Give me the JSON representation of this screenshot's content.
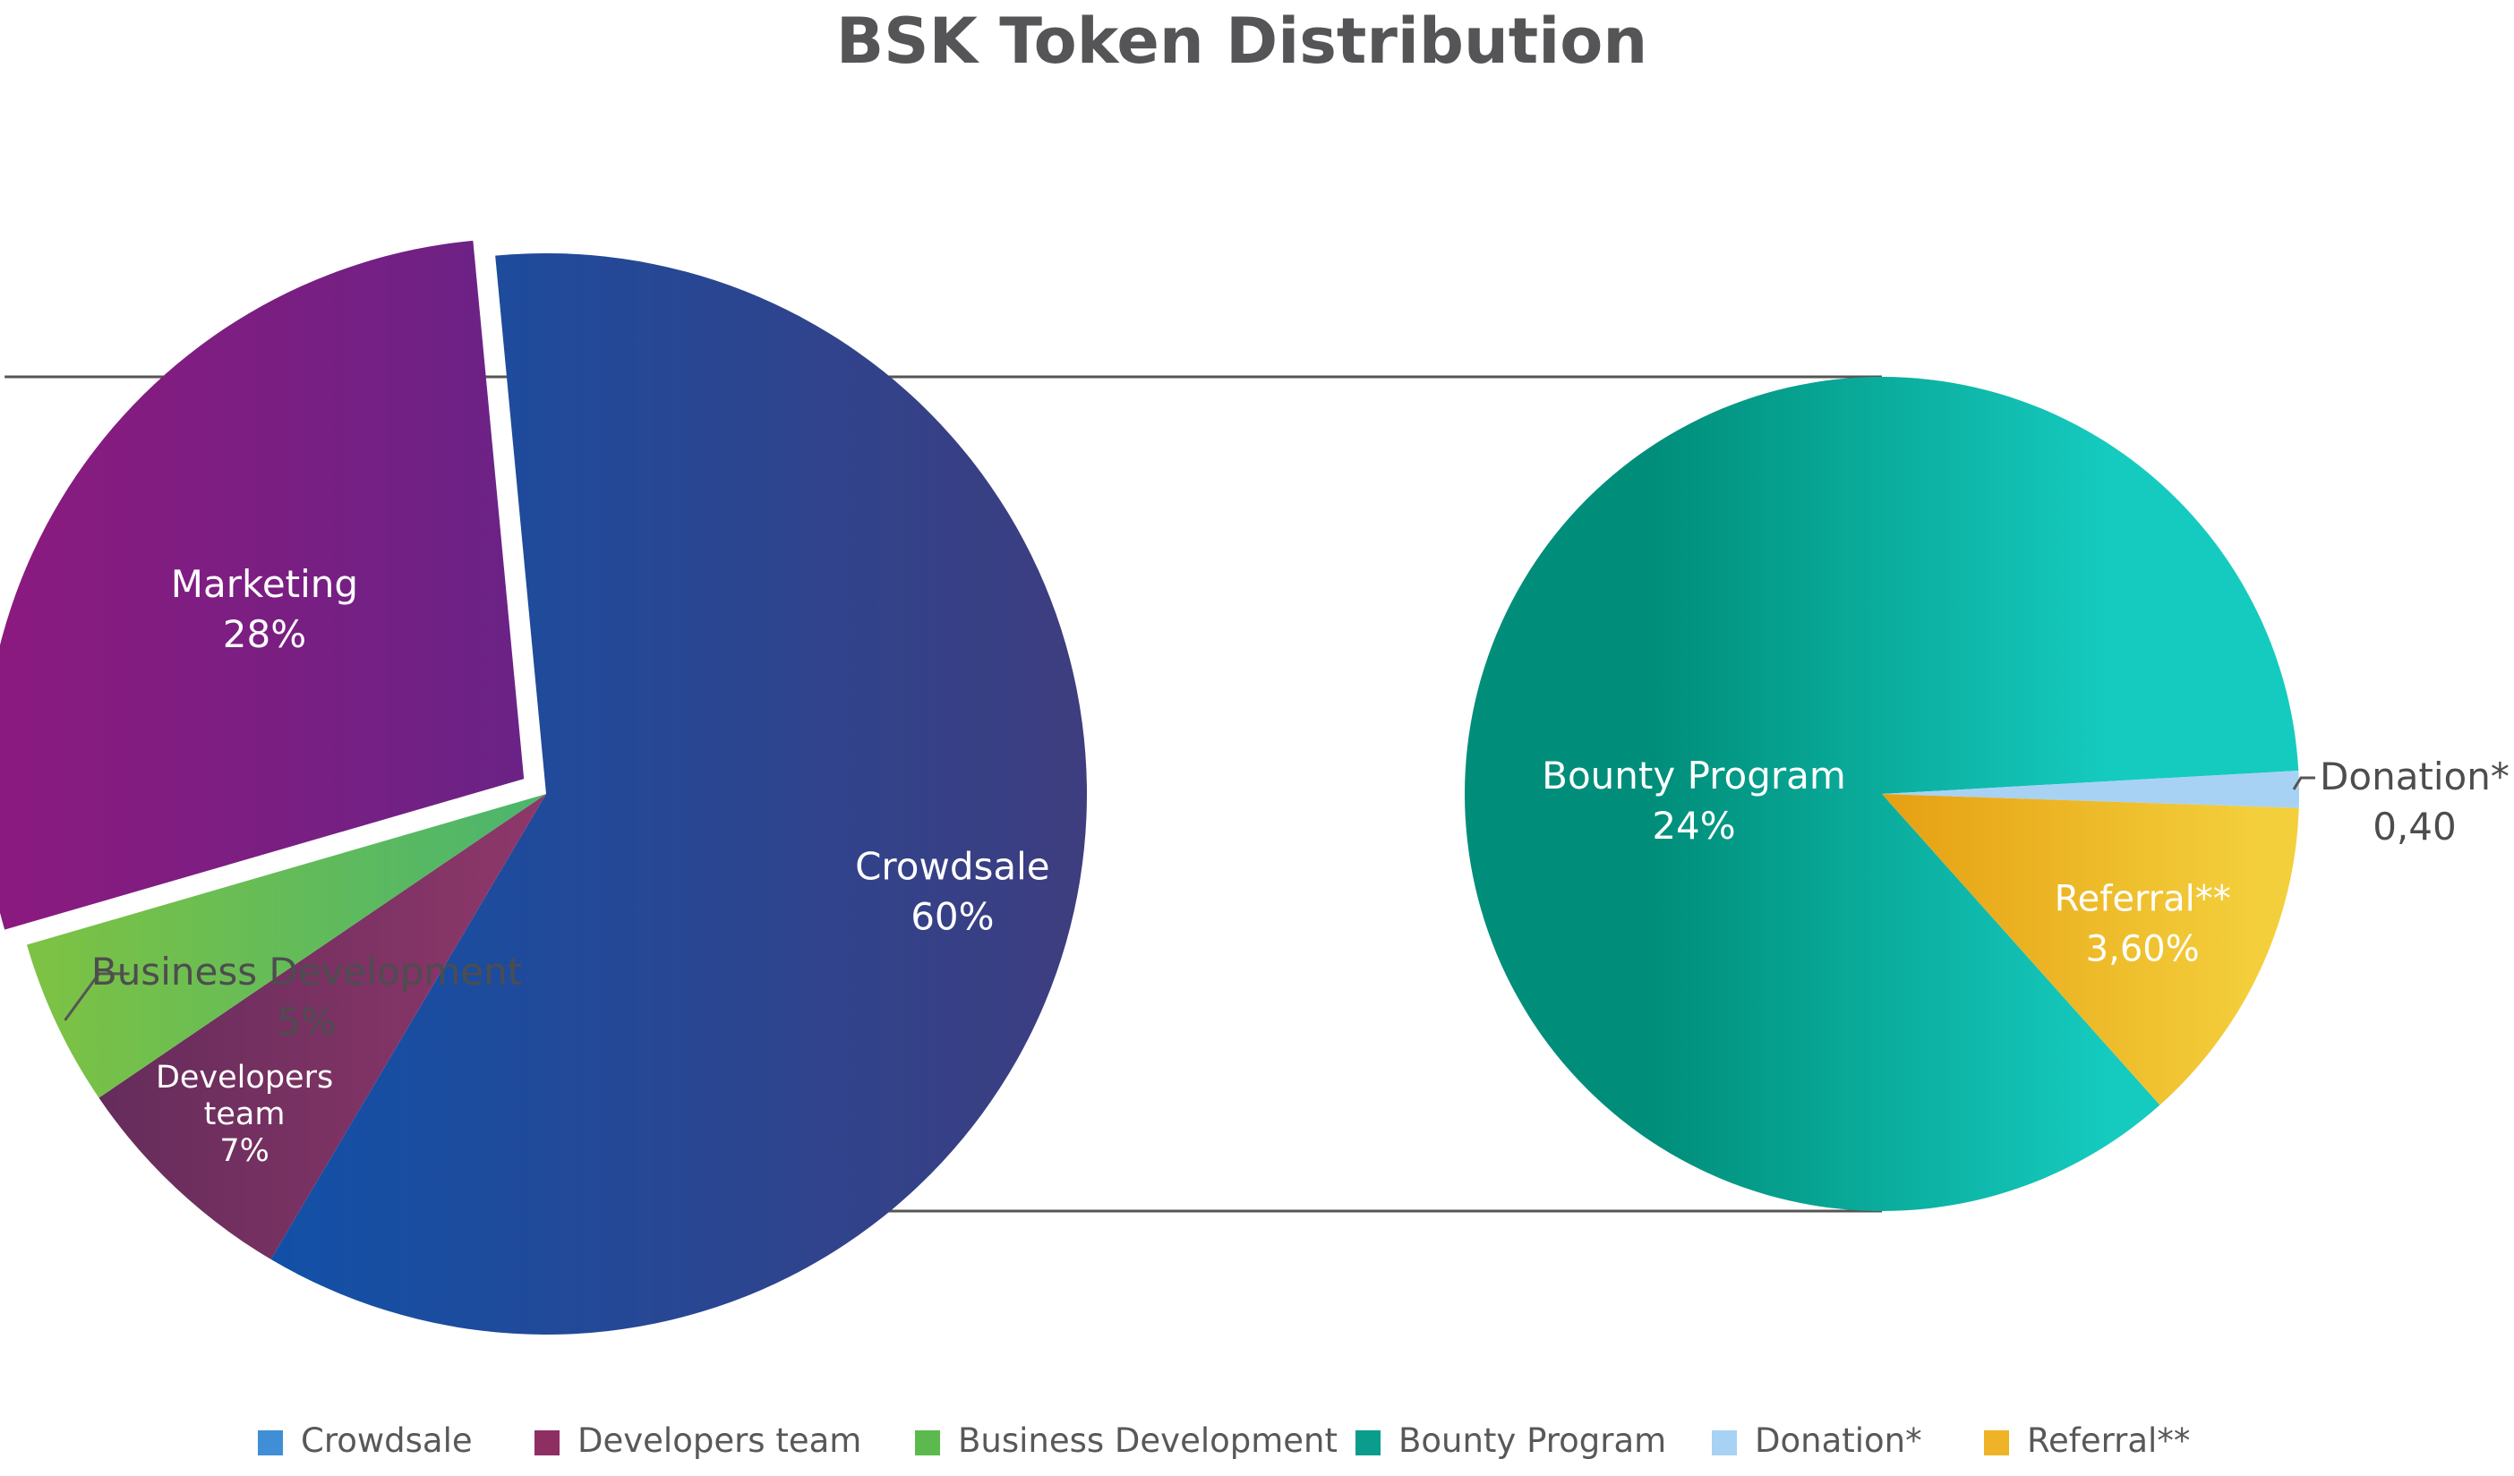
{
  "chart_data": {
    "type": "pie",
    "title": "BSK Token Distribution",
    "main_pie": {
      "slices": [
        {
          "name": "Crowdsale",
          "label_lines": [
            "Crowdsale"
          ],
          "value_label": "60%",
          "value": 60,
          "color_start": "#0357b5",
          "color_end": "#3e3d7f"
        },
        {
          "name": "Developers team",
          "label_lines": [
            "Developers",
            "team"
          ],
          "value_label": "7%",
          "value": 7,
          "color_start": "#5c2a58",
          "color_end": "#c2457c"
        },
        {
          "name": "Business Development",
          "label_lines": [
            "Business Development"
          ],
          "value_label": "5%",
          "value": 5,
          "color_start": "#80c341",
          "color_end": "#15a79a"
        },
        {
          "name": "Marketing",
          "label_lines": [
            "Marketing"
          ],
          "value_label": "28%",
          "value": 28,
          "exploded": true,
          "color_start": "#8c1a7f",
          "color_end": "#4a2a8c"
        }
      ]
    },
    "breakdown_pie": {
      "parent": "Marketing",
      "slices": [
        {
          "name": "Bounty Program",
          "label_lines": [
            "Bounty Program"
          ],
          "value_label": "24%",
          "value": 24,
          "color_start": "#008e7a",
          "color_end": "#15cbbf"
        },
        {
          "name": "Donation*",
          "label_lines": [
            "Donation*"
          ],
          "value_label": "0,40",
          "value": 0.4,
          "color_start": "#a8d2f4",
          "color_end": "#a8d2f4"
        },
        {
          "name": "Referral**",
          "label_lines": [
            "Referral**"
          ],
          "value_label": "3,60%",
          "value": 3.6,
          "color_start": "#e5a012",
          "color_end": "#f4cf3c"
        }
      ]
    },
    "legend": {
      "placement": "bottom",
      "items": [
        {
          "label": "Crowdsale",
          "color": "#3f8ed6"
        },
        {
          "label": "Developers team",
          "color": "#8e2f63"
        },
        {
          "label": "Business Development",
          "color": "#5bb94e"
        },
        {
          "label": "Bounty Program",
          "color": "#0a9c8c"
        },
        {
          "label": "Donation*",
          "color": "#a8d2f4"
        },
        {
          "label": "Referral**",
          "color": "#eeb326"
        }
      ]
    }
  }
}
